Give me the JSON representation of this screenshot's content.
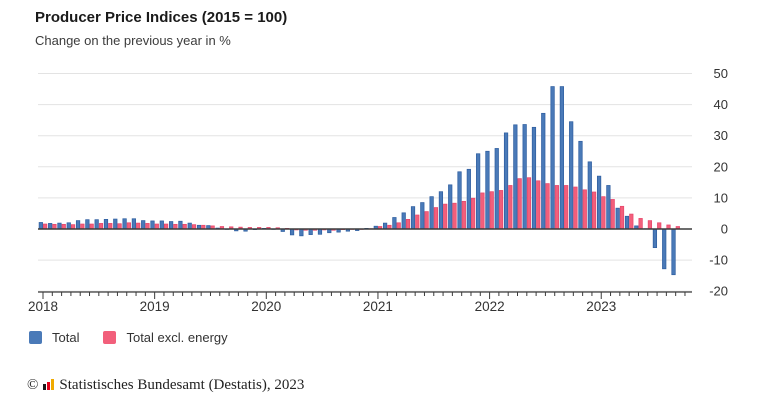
{
  "title": "Producer Price Indices (2015 = 100)",
  "subtitle": "Change on the previous year in %",
  "legend": [
    {
      "label": "Total",
      "color": "#4a7ab8"
    },
    {
      "label": "Total excl. energy",
      "color": "#f25f7b"
    }
  ],
  "footer": {
    "copyright": "©",
    "logo": "destatis-bar-logo",
    "source": "Statistisches Bundesamt (Destatis), 2023"
  },
  "colors": {
    "total_fill": "#4a7ab8",
    "total_stroke": "#2d5d9f",
    "excl_energy_fill": "#f25f7b",
    "excl_energy_stroke": "#e8456a",
    "gridline": "#e3e3e3",
    "axis": "#3b3b3b",
    "tick_label": "#333333",
    "logo_black": "#1a1a1a",
    "logo_red": "#e2001a",
    "logo_gold": "#f0aa00"
  },
  "chart_data": {
    "type": "bar",
    "title": "Producer Price Indices (2015 = 100)",
    "subtitle": "Change on the previous year in %",
    "x_start_month": "2018-01",
    "x_end_month": "2023-09",
    "x_tick_labels": [
      "2018",
      "2019",
      "2020",
      "2021",
      "2022",
      "2023"
    ],
    "y_ticks": [
      50,
      40,
      30,
      20,
      10,
      0,
      -10,
      -20
    ],
    "ylim": [
      -20,
      50
    ],
    "grid": true,
    "legend_position": "bottom-left",
    "y_axis_side": "right",
    "series": [
      {
        "name": "Total",
        "color": "#4a7ab8",
        "values": [
          2.1,
          1.8,
          1.9,
          2.0,
          2.7,
          3.0,
          3.0,
          3.1,
          3.2,
          3.3,
          3.3,
          2.7,
          2.6,
          2.6,
          2.4,
          2.5,
          1.9,
          1.2,
          1.1,
          0.3,
          -0.1,
          -0.6,
          -0.7,
          -0.2,
          0.2,
          -0.1,
          -0.8,
          -1.9,
          -2.2,
          -1.8,
          -1.7,
          -1.2,
          -1.0,
          -0.7,
          -0.5,
          0.2,
          0.9,
          1.9,
          3.7,
          5.2,
          7.2,
          8.5,
          10.4,
          12.0,
          14.2,
          18.4,
          19.2,
          24.2,
          25.0,
          25.9,
          30.9,
          33.5,
          33.6,
          32.7,
          37.2,
          45.8,
          45.8,
          34.5,
          28.2,
          21.6,
          17.0,
          14.0,
          6.7,
          4.1,
          1.0,
          0.1,
          -6.0,
          -12.8,
          -14.7
        ]
      },
      {
        "name": "Total excl. energy",
        "color": "#f25f7b",
        "values": [
          1.6,
          1.5,
          1.5,
          1.4,
          1.6,
          1.6,
          1.8,
          1.8,
          1.7,
          2.0,
          1.9,
          1.8,
          1.6,
          1.6,
          1.5,
          1.5,
          1.4,
          1.2,
          1.0,
          0.8,
          0.7,
          0.6,
          0.5,
          0.5,
          0.5,
          0.4,
          0.2,
          -0.3,
          -0.4,
          -0.4,
          -0.3,
          -0.4,
          -0.2,
          -0.1,
          -0.1,
          0.1,
          0.8,
          1.2,
          2.0,
          3.1,
          4.5,
          5.6,
          6.9,
          8.0,
          8.3,
          8.9,
          9.9,
          11.6,
          12.0,
          12.4,
          14.0,
          16.2,
          16.5,
          15.5,
          14.6,
          14.0,
          14.0,
          13.5,
          12.6,
          11.9,
          10.4,
          9.5,
          7.3,
          4.8,
          3.4,
          2.7,
          2.0,
          1.3,
          0.8
        ]
      }
    ]
  }
}
